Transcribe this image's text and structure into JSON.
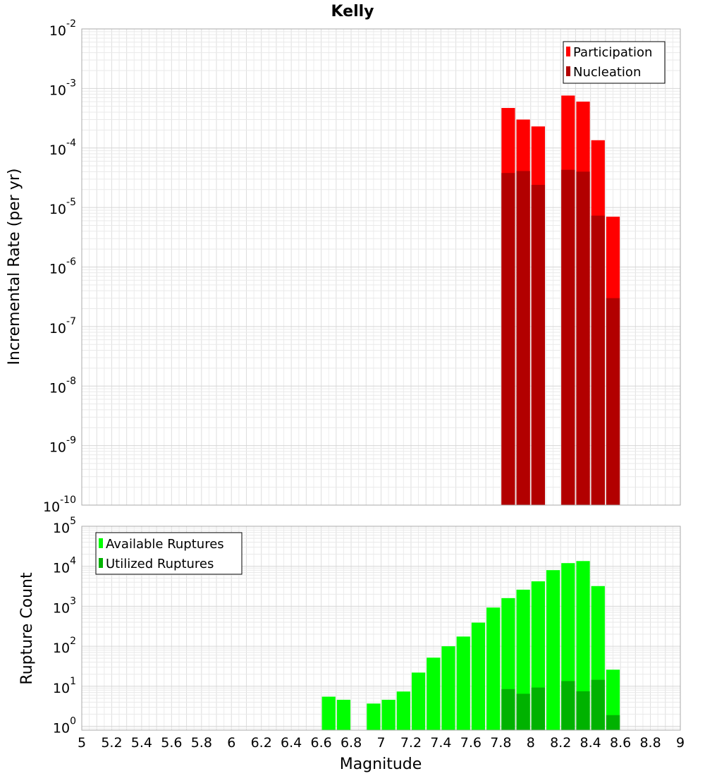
{
  "chart_data": [
    {
      "type": "bar",
      "title": "Kelly",
      "xlabel": "",
      "ylabel": "Incremental Rate (per yr)",
      "yscale": "log",
      "ylim": [
        1e-10,
        0.01
      ],
      "xlim": [
        5,
        9
      ],
      "y_tick_exponents": [
        -10,
        -9,
        -8,
        -7,
        -6,
        -5,
        -4,
        -3,
        -2
      ],
      "legend_position": "top-right",
      "series": [
        {
          "name": "Participation",
          "color": "#ff0000",
          "x": [
            7.85,
            7.95,
            8.05,
            8.25,
            8.35,
            8.45,
            8.55
          ],
          "values": [
            0.00047,
            0.0003,
            0.00023,
            0.00076,
            0.0006,
            0.000135,
            7e-06
          ]
        },
        {
          "name": "Nucleation",
          "color": "#b20000",
          "x": [
            7.85,
            7.95,
            8.05,
            8.25,
            8.35,
            8.45,
            8.55
          ],
          "values": [
            3.8e-05,
            4.1e-05,
            2.4e-05,
            4.3e-05,
            4e-05,
            7.3e-06,
            3e-07
          ]
        }
      ]
    },
    {
      "type": "bar",
      "title": "",
      "xlabel": "Magnitude",
      "ylabel": "Rupture Count",
      "yscale": "log",
      "ylim": [
        0.8,
        100000.0
      ],
      "xlim": [
        5,
        9
      ],
      "y_tick_exponents": [
        0,
        1,
        2,
        3,
        4,
        5
      ],
      "x_tick_labels": [
        "5",
        "5.2",
        "5.4",
        "5.6",
        "5.8",
        "6",
        "6.2",
        "6.4",
        "6.6",
        "6.8",
        "7",
        "7.2",
        "7.4",
        "7.6",
        "7.8",
        "8",
        "8.2",
        "8.4",
        "8.6",
        "8.8",
        "9"
      ],
      "legend_position": "top-left",
      "series": [
        {
          "name": "Available Ruptures",
          "color": "#00ff00",
          "x": [
            6.65,
            6.75,
            6.95,
            7.05,
            7.15,
            7.25,
            7.35,
            7.45,
            7.55,
            7.65,
            7.75,
            7.85,
            7.95,
            8.05,
            8.15,
            8.25,
            8.35,
            8.45,
            8.55
          ],
          "values": [
            5.5,
            4.6,
            3.7,
            4.6,
            7.4,
            22,
            52,
            100,
            175,
            390,
            930,
            1600,
            2600,
            4200,
            8000,
            12000,
            13500,
            3200,
            26
          ]
        },
        {
          "name": "Utilized Ruptures",
          "color": "#00b200",
          "x": [
            7.85,
            7.95,
            8.05,
            8.25,
            8.35,
            8.45,
            8.55
          ],
          "values": [
            8.5,
            6.5,
            9.3,
            13.5,
            7.5,
            14.5,
            1.9
          ]
        }
      ]
    }
  ]
}
